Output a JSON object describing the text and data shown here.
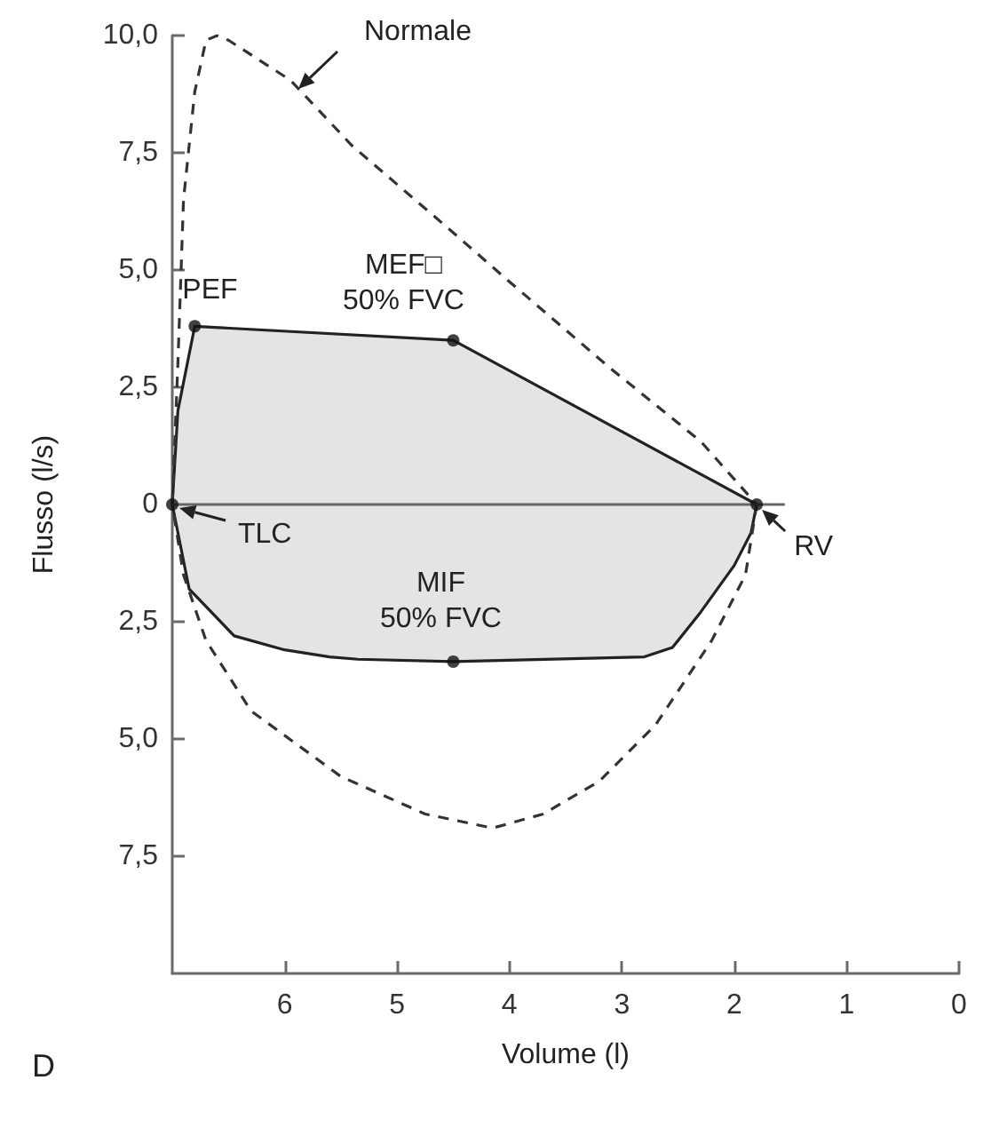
{
  "chart_data": {
    "type": "line",
    "xlabel": "Volume (l)",
    "ylabel": "Flusso (l/s)",
    "xlim": [
      7,
      0
    ],
    "xticks": [
      6,
      5,
      4,
      3,
      2,
      1,
      0
    ],
    "ylim": [
      -10,
      10
    ],
    "yticks": [
      {
        "value": 10,
        "label": "10,0"
      },
      {
        "value": 7.5,
        "label": "7,5"
      },
      {
        "value": 5,
        "label": "5,0"
      },
      {
        "value": 2.5,
        "label": "2,5"
      },
      0,
      {
        "value": -2.5,
        "label": "2,5"
      },
      {
        "value": -5,
        "label": "5,0"
      },
      {
        "value": -7.5,
        "label": "7,5"
      }
    ],
    "series": [
      {
        "line_style": "dashed",
        "color": "#333333",
        "x": [
          7.0,
          6.95,
          6.9,
          6.8,
          6.7,
          6.6,
          6.5,
          5.95,
          5.4,
          4.55,
          4.0,
          3.1,
          2.3,
          1.8
        ],
        "values": [
          0,
          3.0,
          6.5,
          8.8,
          9.9,
          10.0,
          9.9,
          9.05,
          7.65,
          5.9,
          4.75,
          2.9,
          1.35,
          0
        ]
      },
      {
        "line_style": "dashed",
        "color": "#333333",
        "x": [
          1.8,
          1.9,
          2.2,
          2.7,
          3.2,
          3.7,
          4.15,
          4.75,
          5.5,
          6.3,
          6.7,
          6.9,
          7.0
        ],
        "values": [
          0,
          -1.5,
          -2.9,
          -4.7,
          -5.9,
          -6.6,
          -6.9,
          -6.6,
          -5.8,
          -4.4,
          -2.9,
          -1.5,
          0
        ]
      },
      {
        "type": "area",
        "line_style": "solid",
        "color": "#222222",
        "x": [
          7.0,
          6.95,
          6.85,
          6.8,
          4.5,
          1.8,
          1.85,
          2.0,
          2.3,
          2.55,
          2.8,
          4.5,
          5.35,
          5.6,
          6.0,
          6.45,
          6.85,
          7.0
        ],
        "values": [
          0,
          2.0,
          3.2,
          3.8,
          3.5,
          0,
          -0.6,
          -1.3,
          -2.3,
          -3.05,
          -3.25,
          -3.35,
          -3.3,
          -3.25,
          -3.1,
          -2.8,
          -1.8,
          0
        ]
      },
      {
        "line_style": "solid",
        "color": "#666666",
        "x": [
          7.0,
          1.55
        ],
        "values": [
          0,
          0
        ]
      },
      {
        "type": "scatter",
        "marker": "circle",
        "color": "#111111",
        "x": [
          7.0,
          6.8,
          4.5,
          1.8,
          4.5
        ],
        "values": [
          0,
          3.8,
          3.5,
          0,
          -3.35
        ]
      }
    ],
    "annotations": [
      "Normale",
      {
        "text": "PEF",
        "x": 6.8,
        "y": 3.8
      },
      {
        "text": "MEF□\n50% FVC",
        "x": 4.5,
        "y": 3.5
      },
      {
        "text": "MIF\n50% FVC",
        "x": 4.5,
        "y": -3.35
      },
      {
        "text": "TLC",
        "x": 7.0,
        "y": 0
      },
      {
        "text": "RV",
        "x": 1.8,
        "y": 0
      },
      "D"
    ]
  }
}
